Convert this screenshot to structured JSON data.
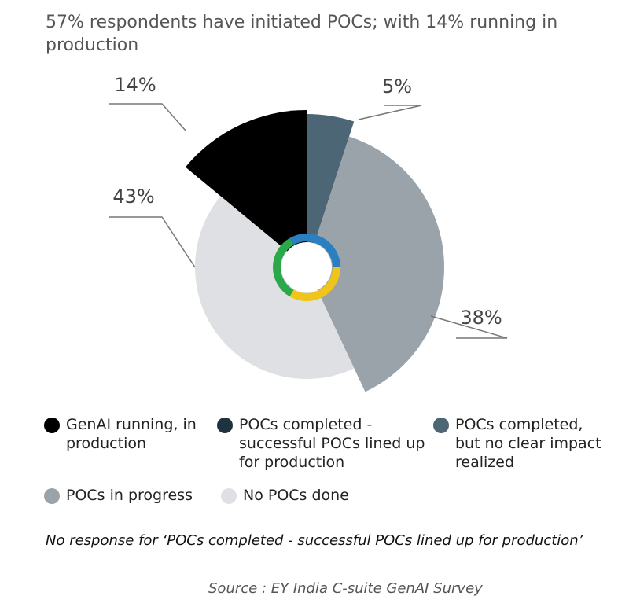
{
  "chart_data": {
    "type": "pie",
    "title": "57% respondents have initiated POCs; with 14% running in production",
    "categories": [
      "GenAI running, in production",
      "POCs completed - successful POCs lined up for production",
      "POCs completed, but no clear impact realized",
      "POCs in progress",
      "No POCs done"
    ],
    "values": [
      14,
      null,
      5,
      38,
      43
    ],
    "value_labels": [
      "14%",
      null,
      "5%",
      "38%",
      "43%"
    ],
    "colors": [
      "#000000",
      "#1e3340",
      "#4d6676",
      "#9aa3aa",
      "#dfe0e3"
    ],
    "note": "No response for ‘POCs completed - successful POCs lined up for production’",
    "source": "Source : EY India C-suite GenAI Survey"
  }
}
